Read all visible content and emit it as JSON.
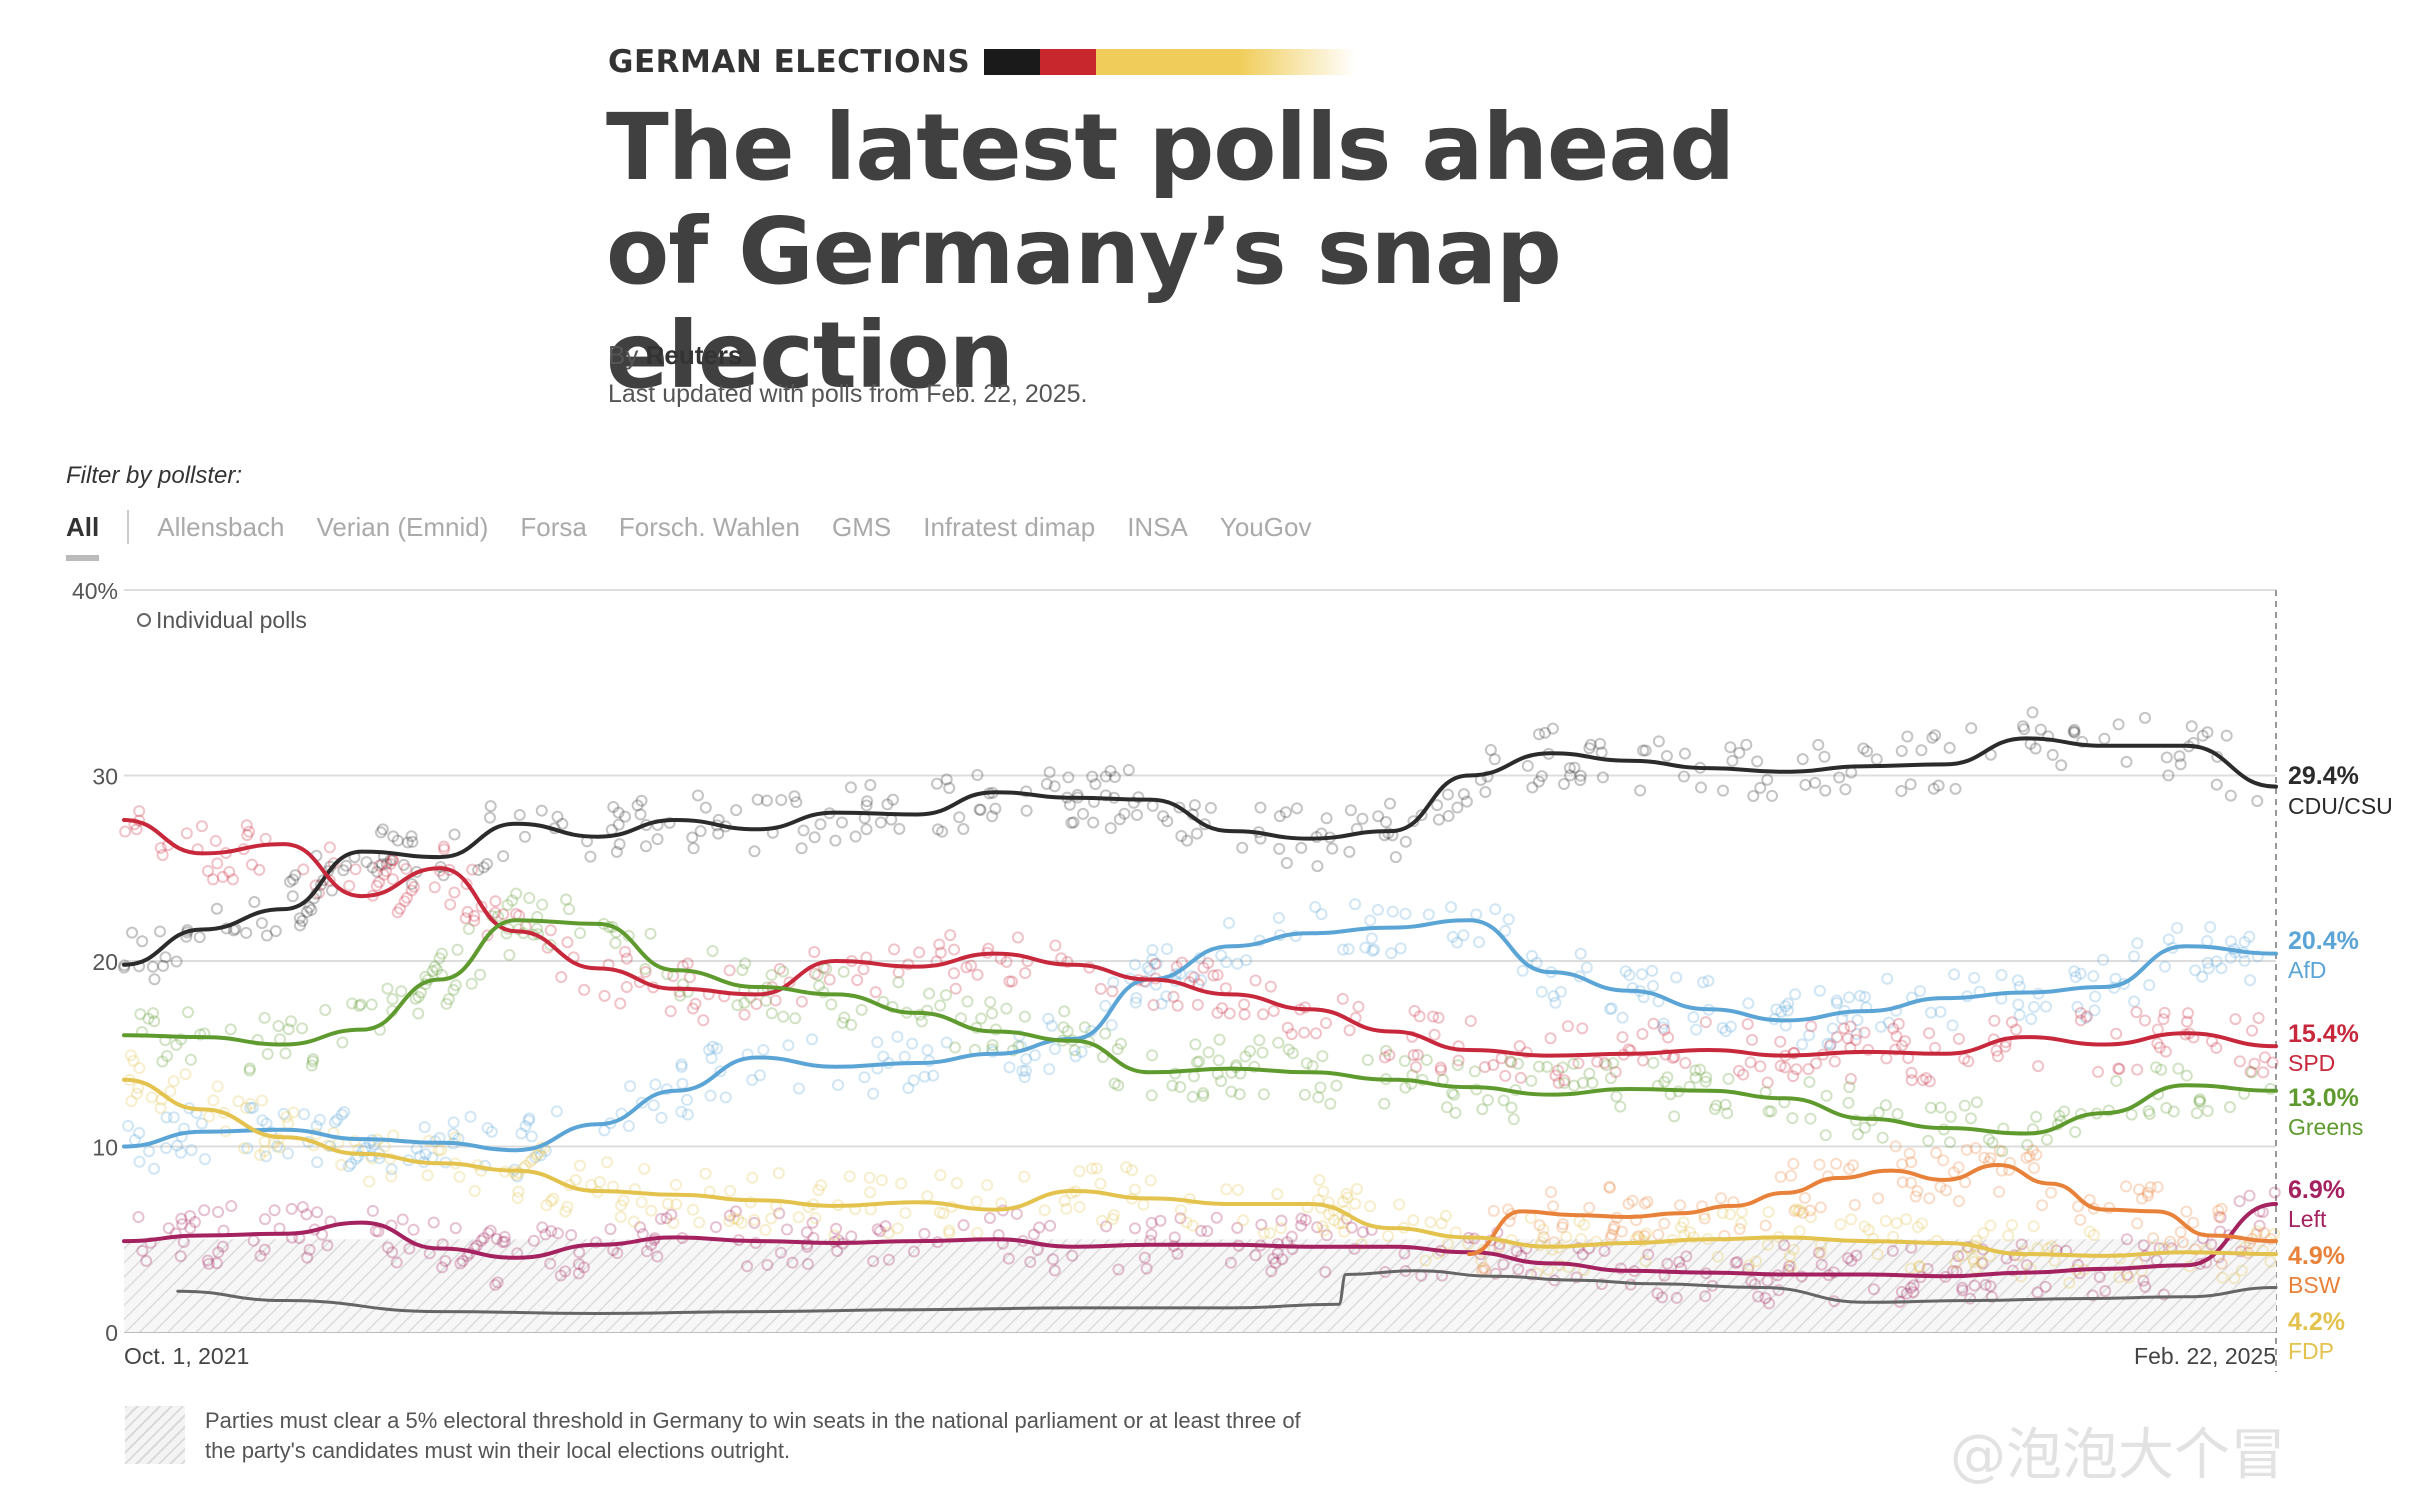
{
  "header": {
    "kicker": "GERMAN ELECTIONS",
    "title": "The latest polls ahead of Germany’s snap election",
    "byline_prefix": "By",
    "byline_author": "Reuters",
    "updated": "Last updated with polls from Feb. 22, 2025.",
    "flag_colors": [
      "#1a1a1a",
      "#c8282d",
      "#f0cd5a"
    ]
  },
  "filter": {
    "label": "Filter by pollster:",
    "tabs": [
      "All",
      "Allensbach",
      "Verian (Emnid)",
      "Forsa",
      "Forsch. Wahlen",
      "GMS",
      "Infratest dimap",
      "INSA",
      "YouGov"
    ],
    "active": "All"
  },
  "chart_data": {
    "type": "line",
    "x_labels": {
      "start": "Oct. 1, 2021",
      "end": "Feb. 22, 2025"
    },
    "x_range": [
      "2021-10-01",
      "2025-02-22"
    ],
    "ylim": [
      0,
      40
    ],
    "yticks": [
      0,
      10,
      20,
      30,
      40
    ],
    "ytick_labels": [
      "0",
      "10",
      "20",
      "30",
      "40%"
    ],
    "grid": true,
    "legend_note": "Individual polls",
    "threshold": 5,
    "series": [
      {
        "name": "CDU/CSU",
        "color": "#2b2b2b",
        "final_label": "29.4%",
        "x": [
          "2021-10-01",
          "2021-11-15",
          "2022-01-01",
          "2022-02-15",
          "2022-04-01",
          "2022-05-15",
          "2022-07-01",
          "2022-08-15",
          "2022-10-01",
          "2022-11-15",
          "2023-01-01",
          "2023-02-15",
          "2023-04-01",
          "2023-05-15",
          "2023-07-01",
          "2023-08-15",
          "2023-10-01",
          "2023-11-15",
          "2024-01-01",
          "2024-02-15",
          "2024-04-01",
          "2024-05-15",
          "2024-07-01",
          "2024-08-15",
          "2024-10-01",
          "2024-11-15",
          "2025-01-01",
          "2025-02-22"
        ],
        "y": [
          19.8,
          21.7,
          22.8,
          25.9,
          25.6,
          27.4,
          26.7,
          27.6,
          27.1,
          28.0,
          27.9,
          29.1,
          28.8,
          28.7,
          27.0,
          26.6,
          27.0,
          30.0,
          31.2,
          30.8,
          30.4,
          30.2,
          30.5,
          30.6,
          32.0,
          31.6,
          31.6,
          29.4
        ]
      },
      {
        "name": "AfD",
        "color": "#5ba4d6",
        "final_label": "20.4%",
        "x": [
          "2021-10-01",
          "2021-11-15",
          "2022-01-01",
          "2022-02-15",
          "2022-04-01",
          "2022-05-15",
          "2022-07-01",
          "2022-08-15",
          "2022-10-01",
          "2022-11-15",
          "2023-01-01",
          "2023-02-15",
          "2023-04-01",
          "2023-05-15",
          "2023-07-01",
          "2023-08-15",
          "2023-10-01",
          "2023-11-15",
          "2024-01-01",
          "2024-02-15",
          "2024-04-01",
          "2024-05-15",
          "2024-07-01",
          "2024-08-15",
          "2024-10-01",
          "2024-11-15",
          "2025-01-01",
          "2025-02-22"
        ],
        "y": [
          10.0,
          10.8,
          10.9,
          10.4,
          10.2,
          9.8,
          11.2,
          13.0,
          14.8,
          14.3,
          14.5,
          15.0,
          15.8,
          19.0,
          20.8,
          21.5,
          21.8,
          22.2,
          19.4,
          18.4,
          17.4,
          16.8,
          17.3,
          18.0,
          18.3,
          18.6,
          20.8,
          20.4
        ]
      },
      {
        "name": "SPD",
        "color": "#c8283c",
        "final_label": "15.4%",
        "x": [
          "2021-10-01",
          "2021-11-15",
          "2022-01-01",
          "2022-02-15",
          "2022-04-01",
          "2022-05-15",
          "2022-07-01",
          "2022-08-15",
          "2022-10-01",
          "2022-11-15",
          "2023-01-01",
          "2023-02-15",
          "2023-04-01",
          "2023-05-15",
          "2023-07-01",
          "2023-08-15",
          "2023-10-01",
          "2023-11-15",
          "2024-01-01",
          "2024-02-15",
          "2024-04-01",
          "2024-05-15",
          "2024-07-01",
          "2024-08-15",
          "2024-10-01",
          "2024-11-15",
          "2025-01-01",
          "2025-02-22"
        ],
        "y": [
          27.6,
          25.8,
          26.3,
          23.5,
          25.0,
          21.6,
          19.6,
          18.5,
          18.2,
          20.0,
          19.7,
          20.4,
          19.8,
          19.0,
          18.2,
          17.4,
          16.2,
          15.2,
          14.9,
          15.0,
          15.2,
          14.9,
          15.1,
          15.0,
          15.9,
          15.5,
          16.1,
          15.4
        ]
      },
      {
        "name": "Greens",
        "color": "#5f9a2e",
        "final_label": "13.0%",
        "x": [
          "2021-10-01",
          "2021-11-15",
          "2022-01-01",
          "2022-02-15",
          "2022-04-01",
          "2022-05-15",
          "2022-07-01",
          "2022-08-15",
          "2022-10-01",
          "2022-11-15",
          "2023-01-01",
          "2023-02-15",
          "2023-04-01",
          "2023-05-15",
          "2023-07-01",
          "2023-08-15",
          "2023-10-01",
          "2023-11-15",
          "2024-01-01",
          "2024-02-15",
          "2024-04-01",
          "2024-05-15",
          "2024-07-01",
          "2024-08-15",
          "2024-10-01",
          "2024-11-15",
          "2025-01-01",
          "2025-02-22"
        ],
        "y": [
          16.0,
          15.9,
          15.5,
          16.3,
          19.0,
          22.2,
          22.0,
          19.5,
          18.6,
          18.2,
          17.2,
          16.2,
          15.7,
          14.0,
          14.2,
          14.0,
          13.6,
          13.2,
          12.8,
          13.1,
          13.0,
          12.6,
          11.5,
          11.0,
          10.7,
          11.8,
          13.3,
          13.0
        ]
      },
      {
        "name": "Left",
        "color": "#a3225f",
        "final_label": "6.9%",
        "x": [
          "2021-10-01",
          "2021-11-15",
          "2022-01-01",
          "2022-02-15",
          "2022-04-01",
          "2022-05-15",
          "2022-07-01",
          "2022-08-15",
          "2022-10-01",
          "2022-11-15",
          "2023-01-01",
          "2023-02-15",
          "2023-04-01",
          "2023-05-15",
          "2023-07-01",
          "2023-08-15",
          "2023-10-01",
          "2023-11-15",
          "2024-01-01",
          "2024-02-15",
          "2024-04-01",
          "2024-05-15",
          "2024-07-01",
          "2024-08-15",
          "2024-10-01",
          "2024-11-15",
          "2025-01-01",
          "2025-02-22"
        ],
        "y": [
          4.9,
          5.2,
          5.3,
          5.9,
          4.5,
          4.0,
          4.7,
          5.1,
          4.9,
          4.8,
          4.9,
          5.0,
          4.6,
          4.7,
          4.7,
          4.6,
          4.6,
          4.3,
          3.7,
          3.3,
          3.2,
          3.1,
          3.1,
          3.0,
          3.2,
          3.4,
          3.6,
          6.9
        ]
      },
      {
        "name": "BSW",
        "color": "#e8823a",
        "final_label": "4.9%",
        "x": [
          "2023-11-15",
          "2023-12-15",
          "2024-01-15",
          "2024-02-15",
          "2024-03-15",
          "2024-04-15",
          "2024-05-15",
          "2024-06-15",
          "2024-07-15",
          "2024-08-15",
          "2024-09-15",
          "2024-10-15",
          "2024-11-15",
          "2024-12-15",
          "2025-01-15",
          "2025-02-22"
        ],
        "y": [
          4.2,
          6.5,
          6.3,
          6.2,
          6.4,
          6.8,
          7.5,
          8.3,
          8.7,
          8.2,
          9.0,
          8.0,
          6.6,
          6.5,
          5.2,
          4.9
        ]
      },
      {
        "name": "FDP",
        "color": "#e3c24d",
        "final_label": "4.2%",
        "x": [
          "2021-10-01",
          "2021-11-15",
          "2022-01-01",
          "2022-02-15",
          "2022-04-01",
          "2022-05-15",
          "2022-07-01",
          "2022-08-15",
          "2022-10-01",
          "2022-11-15",
          "2023-01-01",
          "2023-02-15",
          "2023-04-01",
          "2023-05-15",
          "2023-07-01",
          "2023-08-15",
          "2023-10-01",
          "2023-11-15",
          "2024-01-01",
          "2024-02-15",
          "2024-04-01",
          "2024-05-15",
          "2024-07-01",
          "2024-08-15",
          "2024-10-01",
          "2024-11-15",
          "2025-01-01",
          "2025-02-22"
        ],
        "y": [
          13.6,
          12.0,
          10.5,
          9.6,
          9.1,
          8.7,
          7.6,
          7.4,
          7.1,
          6.8,
          7.0,
          6.6,
          7.6,
          7.2,
          6.9,
          6.9,
          5.6,
          5.1,
          4.6,
          4.8,
          5.0,
          5.1,
          4.9,
          4.8,
          4.2,
          4.1,
          4.3,
          4.2
        ]
      },
      {
        "name": "Other",
        "color": "#666666",
        "final_label": "",
        "x": [
          "2021-11-01",
          "2022-01-01",
          "2022-04-01",
          "2022-07-01",
          "2022-10-01",
          "2023-01-01",
          "2023-04-01",
          "2023-07-01",
          "2023-09-01",
          "2023-09-05",
          "2023-10-15",
          "2023-12-01",
          "2024-01-15",
          "2024-03-01",
          "2024-05-01",
          "2024-07-01",
          "2024-09-01",
          "2024-11-01",
          "2025-01-01",
          "2025-02-22"
        ],
        "y": [
          2.2,
          1.7,
          1.1,
          1.0,
          1.1,
          1.2,
          1.3,
          1.3,
          1.5,
          3.1,
          3.3,
          3.0,
          2.8,
          2.6,
          2.4,
          1.6,
          1.7,
          1.8,
          1.9,
          2.4
        ]
      }
    ],
    "end_labels": [
      {
        "value": "29.4%",
        "name": "CDU/CSU",
        "color": "#2b2b2b"
      },
      {
        "value": "20.4%",
        "name": "AfD",
        "color": "#5ba4d6"
      },
      {
        "value": "15.4%",
        "name": "SPD",
        "color": "#c8283c"
      },
      {
        "value": "13.0%",
        "name": "Greens",
        "color": "#5f9a2e"
      },
      {
        "value": "6.9%",
        "name": "Left",
        "color": "#a3225f"
      },
      {
        "value": "4.9%",
        "name": "BSW",
        "color": "#e8823a"
      },
      {
        "value": "4.2%",
        "name": "FDP",
        "color": "#e3c24d"
      }
    ]
  },
  "footnote": "Parties must clear a 5% electoral threshold in Germany to win seats in the national parliament or at least three of the party's candidates must win their local elections outright.",
  "watermark": "@泡泡大个冒"
}
